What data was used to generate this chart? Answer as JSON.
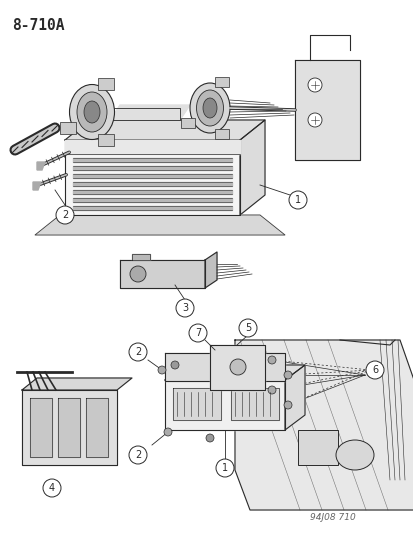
{
  "title": "8-710A",
  "watermark": "94J08 710",
  "bg_color": "#ffffff",
  "fig_width": 4.14,
  "fig_height": 5.33,
  "dpi": 100,
  "line_color": "#2a2a2a",
  "gray_light": "#e8e8e8",
  "gray_mid": "#cccccc",
  "gray_dark": "#aaaaaa",
  "label_fontsize": 7.5,
  "title_fontsize": 10.5
}
